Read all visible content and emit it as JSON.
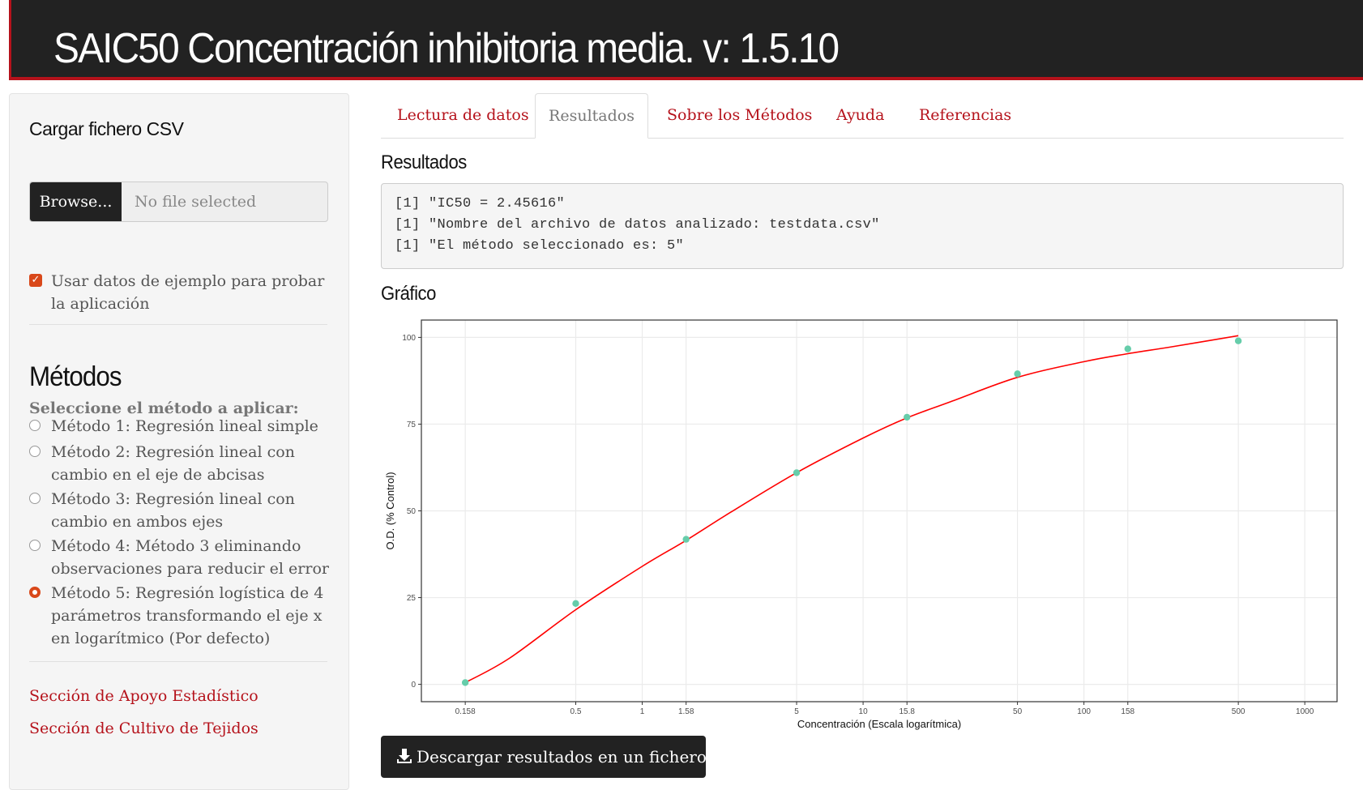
{
  "header": {
    "title": "SAIC50 Concentración inhibitoria media. v: 1.5.10"
  },
  "sidebar": {
    "upload_title": "Cargar fichero CSV",
    "browse_label": "Browse...",
    "no_file_label": "No file selected",
    "example_checkbox_label": "Usar datos de ejemplo para probar la aplicación",
    "example_checked": true,
    "methods_title": "Métodos",
    "methods_prompt": "Seleccione el método a aplicar:",
    "methods": [
      "Método 1: Regresión lineal simple",
      "Método 2: Regresión lineal con cambio en el eje de abcisas",
      "Método 3: Regresión lineal con cambio en ambos ejes",
      "Método 4: Método 3 eliminando observaciones para reducir el error",
      "Método 5: Regresión logística de 4 parámetros transformando el eje x en logarítmico (Por defecto)"
    ],
    "selected_method": 5,
    "links": [
      "Sección de Apoyo Estadístico",
      "Sección de Cultivo de Tejidos"
    ]
  },
  "tabs": [
    "Lectura de datos",
    "Resultados",
    "Sobre los Métodos",
    "Ayuda",
    "Referencias"
  ],
  "active_tab": "Resultados",
  "results": {
    "heading": "Resultados",
    "lines": [
      "[1] \"IC50 = 2.45616\"",
      "[1] \"Nombre del archivo de datos analizado: testdata.csv\"",
      "[1] \"El método seleccionado es: 5\""
    ]
  },
  "plot_heading": "Gráfico",
  "download_label": "Descargar resultados en un fichero zip",
  "colors": {
    "accent": "#b5121b",
    "navbar": "#222222",
    "points": "#66cdaa",
    "curve": "#ff0000"
  },
  "chart_data": {
    "type": "scatter",
    "xlabel": "Concentración (Escala logarítmica)",
    "ylabel": "O.D. (% Control)",
    "x_scale": "log10",
    "xlim": [
      0.1,
      1400
    ],
    "ylim": [
      -5,
      105
    ],
    "x_ticks": [
      "0.158",
      "0.5",
      "1",
      "1.58",
      "5",
      "10",
      "15.8",
      "50",
      "100",
      "158",
      "500",
      "1000"
    ],
    "x_tick_values": [
      0.158,
      0.5,
      1,
      1.58,
      5,
      10,
      15.8,
      50,
      100,
      158,
      500,
      1000
    ],
    "y_ticks": [
      0,
      25,
      50,
      75,
      100
    ],
    "grid": true,
    "points": {
      "x": [
        0.158,
        0.5,
        1.58,
        5,
        15.8,
        50,
        158,
        500
      ],
      "y": [
        0.5,
        23.3,
        41.8,
        61.0,
        77.0,
        89.5,
        96.7,
        99.0
      ]
    },
    "fit_curve": {
      "x": [
        0.158,
        0.25,
        0.5,
        1,
        1.58,
        2.5,
        5,
        10,
        15.8,
        25,
        50,
        100,
        158,
        250,
        500
      ],
      "y": [
        0.5,
        7.5,
        21.5,
        34.0,
        41.5,
        49.5,
        61.0,
        71.0,
        76.8,
        81.5,
        88.5,
        93.0,
        95.3,
        97.3,
        100.5
      ]
    }
  }
}
